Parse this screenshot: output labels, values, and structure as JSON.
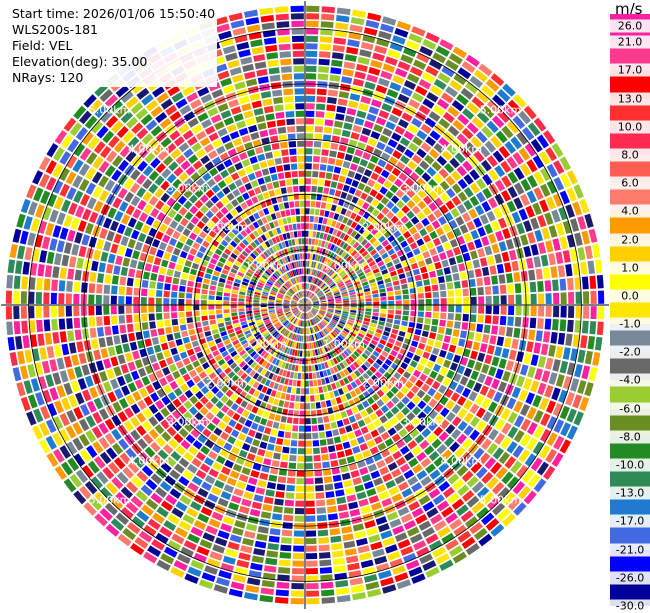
{
  "info": {
    "start_time": "Start time: 2026/01/06 15:50:40",
    "instrument": "WLS200s-181",
    "field": "Field: VEL",
    "elevation": "Elevation(deg): 35.00",
    "nrays": "NRays: 120"
  },
  "range_rings": [
    {
      "label": "1.00km",
      "km": 1
    },
    {
      "label": "2.00km",
      "km": 2
    },
    {
      "label": "3.00km",
      "km": 3
    },
    {
      "label": "4.00km",
      "km": 4
    },
    {
      "label": "5.00km",
      "km": 5
    }
  ],
  "colorbar": {
    "unit": "m/s",
    "ticks": [
      "26.0",
      "21.0",
      "17.0",
      "13.0",
      "10.0",
      "8.0",
      "6.0",
      "4.0",
      "2.0",
      "1.0",
      "0.0",
      "-1.0",
      "-2.0",
      "-4.0",
      "-6.0",
      "-8.0",
      "-10.0",
      "-13.0",
      "-17.0",
      "-21.0",
      "-26.0",
      "-30.0"
    ],
    "colors": [
      "#ff1fa0",
      "#ff3a8c",
      "#ff0000",
      "#ff3030",
      "#ff2a50",
      "#ff5e52",
      "#ff7b6b",
      "#ff9a00",
      "#ffcf00",
      "#ffff00",
      "#ffe600",
      "#778899",
      "#696969",
      "#9acd32",
      "#6b8e23",
      "#228b22",
      "#2e8b57",
      "#1e7bd0",
      "#4169e1",
      "#0000ff",
      "#000099",
      "#191970"
    ]
  }
}
